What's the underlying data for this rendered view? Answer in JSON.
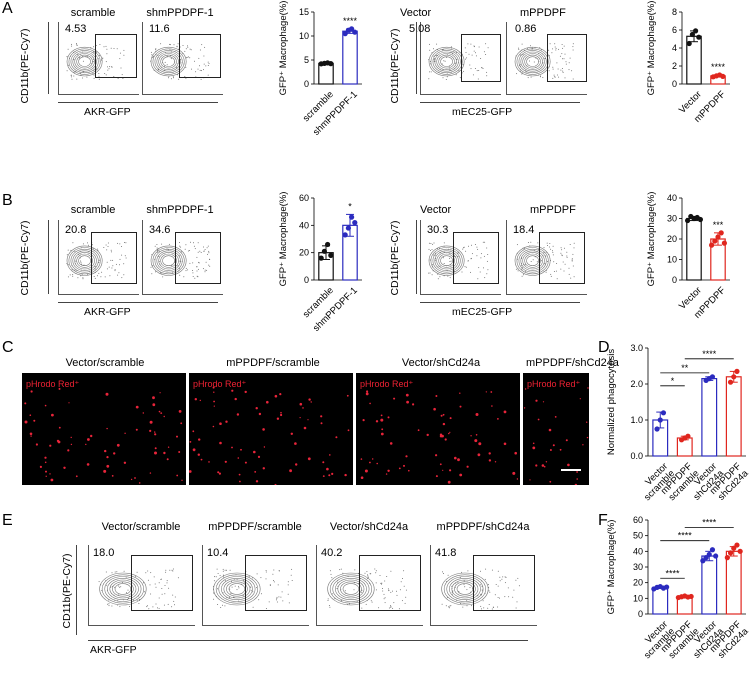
{
  "panel_letters": {
    "A": "A",
    "B": "B",
    "C": "C",
    "D": "D",
    "E": "E",
    "F": "F"
  },
  "flow_axis": {
    "y": "CD11b(PE-Cy7)",
    "x_akr": "AKR-GFP",
    "x_mec": "mEC25-GFP"
  },
  "A": {
    "flow_left": [
      {
        "title": "scramble",
        "pct": "4.53"
      },
      {
        "title": "shmPPDPF-1",
        "pct": "11.6"
      }
    ],
    "flow_right": [
      {
        "title": "Vector",
        "pct": "5.08"
      },
      {
        "title": "mPPDPF",
        "pct": "0.86"
      }
    ]
  },
  "B": {
    "flow_left": [
      {
        "title": "scramble",
        "pct": "20.8"
      },
      {
        "title": "shmPPDPF-1",
        "pct": "34.6"
      }
    ],
    "flow_right": [
      {
        "title": "Vector",
        "pct": "30.3"
      },
      {
        "title": "mPPDPF",
        "pct": "18.4"
      }
    ]
  },
  "C": {
    "titles": [
      "Vector/scramble",
      "mPPDPF/scramble",
      "Vector/shCd24a",
      "mPPDPF/shCd24a"
    ],
    "stain": "pHrodo Red⁺"
  },
  "E": {
    "titles": [
      "Vector/scramble",
      "mPPDPF/scramble",
      "Vector/shCd24a",
      "mPPDPF/shCd24a"
    ],
    "pcts": [
      "18.0",
      "10.4",
      "40.2",
      "41.8"
    ]
  },
  "colors": {
    "blue": "#2b2bbf",
    "red": "#e0261e",
    "black": "#111111"
  },
  "chart_data": [
    {
      "id": "A1",
      "type": "bar",
      "ylabel": "GFP⁺ Macrophage(%)",
      "ylim": [
        0,
        15
      ],
      "yticks": [
        0,
        5,
        10,
        15
      ],
      "categories": [
        "scramble",
        "shmPPDPF-1"
      ],
      "values": [
        4.3,
        11.0
      ],
      "colors": [
        "black",
        "blue"
      ],
      "points": [
        [
          4.2,
          4.3,
          4.4,
          4.25
        ],
        [
          10.5,
          11.2,
          11.5,
          10.8
        ]
      ],
      "errors": [
        0.15,
        0.45
      ],
      "annotations": [
        {
          "bar": 1,
          "text": "****"
        }
      ]
    },
    {
      "id": "A2",
      "type": "bar",
      "ylabel": "GFP⁺ Macrophage(%)",
      "ylim": [
        0,
        8
      ],
      "yticks": [
        0,
        2,
        4,
        6,
        8
      ],
      "categories": [
        "Vector",
        "mPPDPF"
      ],
      "values": [
        5.3,
        0.9
      ],
      "colors": [
        "black",
        "red"
      ],
      "points": [
        [
          4.5,
          5.5,
          5.9,
          5.2
        ],
        [
          0.8,
          0.9,
          1.0,
          0.85
        ]
      ],
      "errors": [
        0.6,
        0.1
      ],
      "annotations": [
        {
          "bar": 1,
          "text": "****"
        }
      ]
    },
    {
      "id": "B1",
      "type": "bar",
      "ylabel": "GFP⁺ Macrophage(%)",
      "ylim": [
        0,
        60
      ],
      "yticks": [
        0,
        20,
        40,
        60
      ],
      "categories": [
        "scramble",
        "shmPPDPF-1"
      ],
      "values": [
        20,
        40
      ],
      "colors": [
        "black",
        "blue"
      ],
      "points": [
        [
          16,
          21,
          26,
          18
        ],
        [
          33,
          38,
          46,
          42
        ]
      ],
      "errors": [
        5,
        8
      ],
      "annotations": [
        {
          "bar": 1,
          "text": "*"
        }
      ]
    },
    {
      "id": "B2",
      "type": "bar",
      "ylabel": "GFP⁺ Macrophage(%)",
      "ylim": [
        0,
        40
      ],
      "yticks": [
        0,
        10,
        20,
        30,
        40
      ],
      "categories": [
        "Vector",
        "mPPDPF"
      ],
      "values": [
        30,
        20
      ],
      "colors": [
        "black",
        "red"
      ],
      "points": [
        [
          29,
          31,
          30,
          30.5,
          29.5
        ],
        [
          17,
          19,
          21,
          23,
          18
        ]
      ],
      "errors": [
        1,
        3
      ],
      "annotations": [
        {
          "bar": 1,
          "text": "***"
        }
      ]
    },
    {
      "id": "D",
      "type": "bar",
      "ylabel": "Normalized phagocytosis",
      "ylim": [
        0,
        3.0
      ],
      "yticks": [
        0.0,
        1.0,
        2.0,
        3.0
      ],
      "categories": [
        "Vector scramble",
        "mPPDPF scramble",
        "Vector shCd24a",
        "mPPDPF shCd24a"
      ],
      "values": [
        1.0,
        0.5,
        2.15,
        2.2
      ],
      "colors": [
        "blue",
        "red",
        "blue",
        "red"
      ],
      "points": [
        [
          0.75,
          1.0,
          1.2
        ],
        [
          0.45,
          0.5,
          0.55
        ],
        [
          2.1,
          2.15,
          2.2
        ],
        [
          2.05,
          2.2,
          2.35
        ]
      ],
      "errors": [
        0.22,
        0.05,
        0.05,
        0.15
      ],
      "brackets": [
        {
          "from": 0,
          "to": 1,
          "level": 0.65,
          "text": "*"
        },
        {
          "from": 0,
          "to": 2,
          "level": 0.77,
          "text": "**"
        },
        {
          "from": 1,
          "to": 3,
          "level": 0.9,
          "text": "****"
        }
      ]
    },
    {
      "id": "F",
      "type": "bar",
      "ylabel": "GFP⁺ Macrophage(%)",
      "ylim": [
        0,
        60
      ],
      "yticks": [
        0,
        10,
        20,
        30,
        40,
        50,
        60
      ],
      "categories": [
        "Vector scramble",
        "mPPDPF scramble",
        "Vector shCd24a",
        "mPPDPF shCd24a"
      ],
      "values": [
        17,
        11,
        37,
        40
      ],
      "colors": [
        "blue",
        "red",
        "blue",
        "red"
      ],
      "points": [
        [
          16,
          17,
          17.5,
          16.5,
          17.2
        ],
        [
          10.5,
          11,
          11.5,
          10.8,
          11.2
        ],
        [
          34,
          36,
          38,
          41,
          37
        ],
        [
          36,
          39,
          42,
          44,
          40
        ]
      ],
      "errors": [
        0.7,
        0.5,
        3,
        3
      ],
      "brackets": [
        {
          "from": 0,
          "to": 1,
          "level": 0.38,
          "text": "****"
        },
        {
          "from": 0,
          "to": 2,
          "level": 0.78,
          "text": "****"
        },
        {
          "from": 1,
          "to": 3,
          "level": 0.92,
          "text": "****"
        }
      ]
    }
  ]
}
